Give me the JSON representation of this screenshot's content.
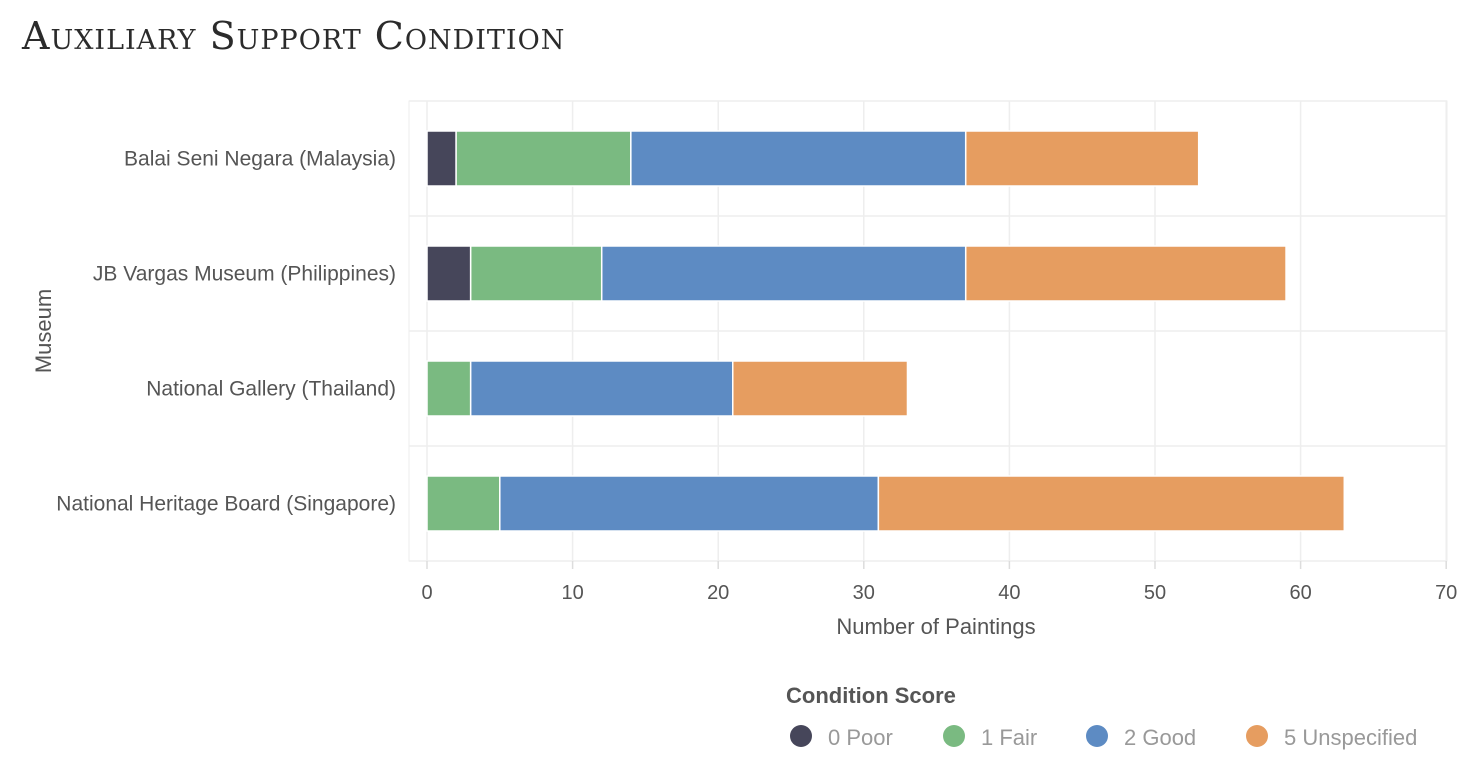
{
  "chart_data": {
    "type": "bar",
    "orientation": "horizontal",
    "stacked": true,
    "title": "Auxiliary Support Condition",
    "xlabel": "Number of Paintings",
    "ylabel": "Museum",
    "xlim": [
      0,
      70
    ],
    "xticks": [
      0,
      10,
      20,
      30,
      40,
      50,
      60,
      70
    ],
    "grid": true,
    "legend_position": "bottom-right",
    "legend_title": "Condition Score",
    "categories": [
      "Balai Seni Negara (Malaysia)",
      "JB Vargas Museum (Philippines)",
      "National Gallery (Thailand)",
      "National Heritage Board (Singapore)"
    ],
    "series": [
      {
        "name": "0 Poor",
        "color": "#46465a",
        "values": [
          2,
          3,
          0,
          0
        ]
      },
      {
        "name": "1 Fair",
        "color": "#7aba81",
        "values": [
          12,
          9,
          3,
          5
        ]
      },
      {
        "name": "2 Good",
        "color": "#5d8bc3",
        "values": [
          23,
          25,
          18,
          26
        ]
      },
      {
        "name": "5 Unspecified",
        "color": "#e69d60",
        "values": [
          16,
          22,
          12,
          32
        ]
      }
    ]
  }
}
